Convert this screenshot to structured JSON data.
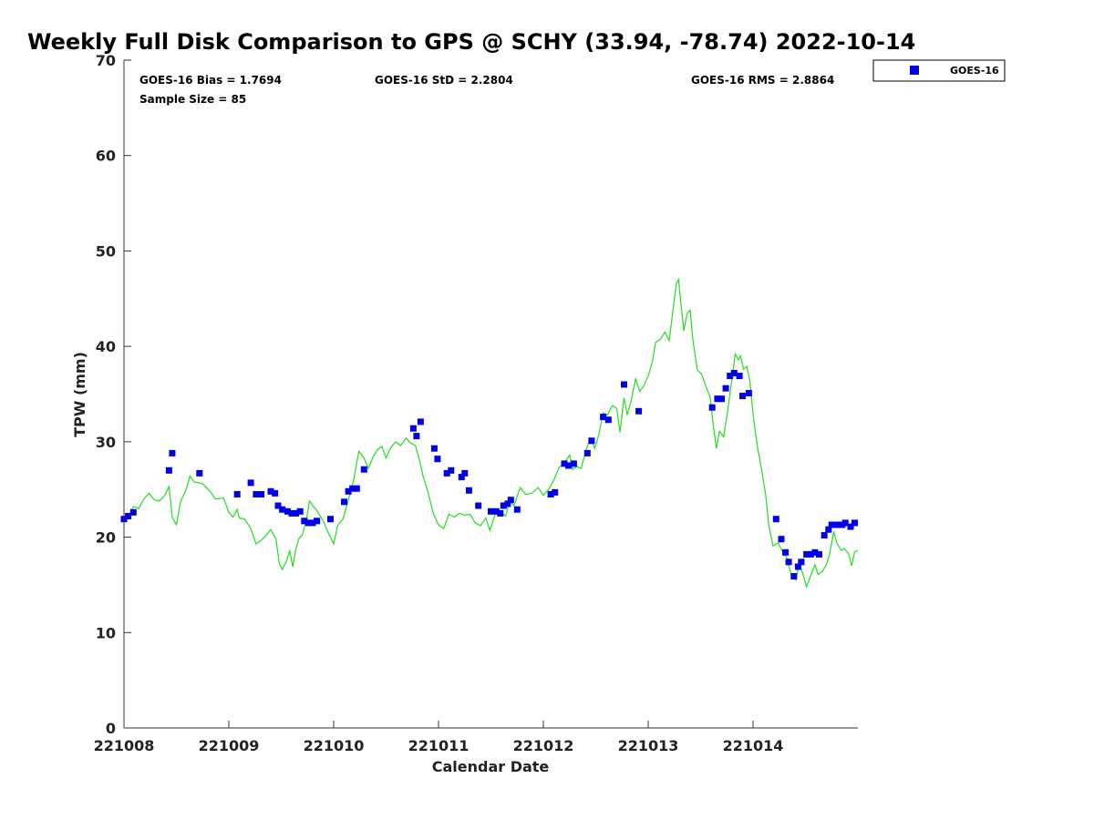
{
  "chart_data": {
    "type": "scatter",
    "title": "Weekly Full Disk Comparison to GPS @ SCHY (33.94, -78.74) 2022-10-14",
    "xlabel": "Calendar Date",
    "ylabel": "TPW (mm)",
    "xlim": [
      0,
      7
    ],
    "ylim": [
      0,
      70
    ],
    "yticks": [
      0,
      10,
      20,
      30,
      40,
      50,
      60,
      70
    ],
    "xticks": [
      {
        "x": 0,
        "label": "221008"
      },
      {
        "x": 1,
        "label": "221009"
      },
      {
        "x": 2,
        "label": "221010"
      },
      {
        "x": 3,
        "label": "221011"
      },
      {
        "x": 4,
        "label": "221012"
      },
      {
        "x": 5,
        "label": "221013"
      },
      {
        "x": 6,
        "label": "221014"
      }
    ],
    "grid": false,
    "legend_position": "top-right",
    "stats": {
      "bias": "GOES-16 Bias = 1.7694",
      "std": "GOES-16 StD = 2.2804",
      "rms": "GOES-16 RMS = 2.8864",
      "sample": "Sample Size = 85"
    },
    "series": [
      {
        "name": "GOES-16",
        "kind": "scatter",
        "color": "#0000ee",
        "points": [
          [
            0.0,
            21.9
          ],
          [
            0.04,
            22.2
          ],
          [
            0.09,
            22.6
          ],
          [
            0.43,
            27.0
          ],
          [
            0.46,
            28.8
          ],
          [
            0.72,
            26.7
          ],
          [
            1.08,
            24.5
          ],
          [
            1.21,
            25.7
          ],
          [
            1.26,
            24.5
          ],
          [
            1.31,
            24.5
          ],
          [
            1.4,
            24.8
          ],
          [
            1.44,
            24.6
          ],
          [
            1.47,
            23.3
          ],
          [
            1.51,
            22.9
          ],
          [
            1.56,
            22.7
          ],
          [
            1.6,
            22.5
          ],
          [
            1.64,
            22.5
          ],
          [
            1.68,
            22.7
          ],
          [
            1.72,
            21.7
          ],
          [
            1.76,
            21.5
          ],
          [
            1.8,
            21.5
          ],
          [
            1.84,
            21.7
          ],
          [
            1.97,
            21.9
          ],
          [
            2.1,
            23.7
          ],
          [
            2.14,
            24.8
          ],
          [
            2.18,
            25.1
          ],
          [
            2.22,
            25.1
          ],
          [
            2.29,
            27.1
          ],
          [
            2.76,
            31.4
          ],
          [
            2.79,
            30.6
          ],
          [
            2.83,
            32.1
          ],
          [
            2.96,
            29.3
          ],
          [
            2.99,
            28.2
          ],
          [
            3.08,
            26.7
          ],
          [
            3.12,
            27.0
          ],
          [
            3.22,
            26.3
          ],
          [
            3.25,
            26.7
          ],
          [
            3.29,
            24.9
          ],
          [
            3.38,
            23.3
          ],
          [
            3.5,
            22.7
          ],
          [
            3.55,
            22.7
          ],
          [
            3.59,
            22.5
          ],
          [
            3.62,
            23.3
          ],
          [
            3.66,
            23.5
          ],
          [
            3.69,
            23.9
          ],
          [
            3.75,
            22.9
          ],
          [
            4.07,
            24.5
          ],
          [
            4.11,
            24.7
          ],
          [
            4.2,
            27.7
          ],
          [
            4.24,
            27.5
          ],
          [
            4.29,
            27.7
          ],
          [
            4.42,
            28.8
          ],
          [
            4.46,
            30.1
          ],
          [
            4.57,
            32.6
          ],
          [
            4.62,
            32.3
          ],
          [
            4.77,
            36.0
          ],
          [
            4.91,
            33.2
          ],
          [
            5.61,
            33.6
          ],
          [
            5.66,
            34.5
          ],
          [
            5.7,
            34.5
          ],
          [
            5.74,
            35.6
          ],
          [
            5.78,
            36.9
          ],
          [
            5.82,
            37.2
          ],
          [
            5.87,
            36.9
          ],
          [
            5.9,
            34.8
          ],
          [
            5.96,
            35.1
          ],
          [
            6.22,
            21.9
          ],
          [
            6.27,
            19.8
          ],
          [
            6.31,
            18.4
          ],
          [
            6.34,
            17.4
          ],
          [
            6.39,
            15.9
          ],
          [
            6.43,
            16.9
          ],
          [
            6.46,
            17.4
          ],
          [
            6.51,
            18.2
          ],
          [
            6.55,
            18.2
          ],
          [
            6.59,
            18.4
          ],
          [
            6.63,
            18.2
          ],
          [
            6.68,
            20.2
          ],
          [
            6.72,
            20.8
          ],
          [
            6.75,
            21.3
          ],
          [
            6.81,
            21.3
          ],
          [
            6.85,
            21.3
          ],
          [
            6.88,
            21.5
          ],
          [
            6.93,
            21.1
          ],
          [
            6.97,
            21.5
          ]
        ]
      },
      {
        "kind": "line",
        "color": "#22dd22",
        "points": [
          [
            0.0,
            21.6
          ],
          [
            0.05,
            22.3
          ],
          [
            0.09,
            23.2
          ],
          [
            0.14,
            23.0
          ],
          [
            0.19,
            24.0
          ],
          [
            0.24,
            24.6
          ],
          [
            0.29,
            23.9
          ],
          [
            0.34,
            23.8
          ],
          [
            0.39,
            24.4
          ],
          [
            0.43,
            25.3
          ],
          [
            0.46,
            22.1
          ],
          [
            0.5,
            21.3
          ],
          [
            0.54,
            23.7
          ],
          [
            0.59,
            24.9
          ],
          [
            0.63,
            26.4
          ],
          [
            0.67,
            25.8
          ],
          [
            0.75,
            25.6
          ],
          [
            0.83,
            24.7
          ],
          [
            0.87,
            24.0
          ],
          [
            0.95,
            24.1
          ],
          [
            1.0,
            22.6
          ],
          [
            1.04,
            22.1
          ],
          [
            1.08,
            22.9
          ],
          [
            1.1,
            22.0
          ],
          [
            1.15,
            21.9
          ],
          [
            1.21,
            20.9
          ],
          [
            1.26,
            19.3
          ],
          [
            1.3,
            19.6
          ],
          [
            1.35,
            20.1
          ],
          [
            1.4,
            20.8
          ],
          [
            1.45,
            19.8
          ],
          [
            1.48,
            17.3
          ],
          [
            1.51,
            16.6
          ],
          [
            1.55,
            17.5
          ],
          [
            1.58,
            18.6
          ],
          [
            1.61,
            16.9
          ],
          [
            1.64,
            18.8
          ],
          [
            1.67,
            19.9
          ],
          [
            1.7,
            20.2
          ],
          [
            1.74,
            21.8
          ],
          [
            1.77,
            23.8
          ],
          [
            1.8,
            23.3
          ],
          [
            1.84,
            22.8
          ],
          [
            1.9,
            21.7
          ],
          [
            1.95,
            20.4
          ],
          [
            2.0,
            19.3
          ],
          [
            2.04,
            21.3
          ],
          [
            2.09,
            21.9
          ],
          [
            2.14,
            23.9
          ],
          [
            2.19,
            26.0
          ],
          [
            2.24,
            29.0
          ],
          [
            2.29,
            28.3
          ],
          [
            2.33,
            27.2
          ],
          [
            2.38,
            28.5
          ],
          [
            2.42,
            29.2
          ],
          [
            2.46,
            29.5
          ],
          [
            2.5,
            28.3
          ],
          [
            2.54,
            29.3
          ],
          [
            2.59,
            30.0
          ],
          [
            2.64,
            29.6
          ],
          [
            2.69,
            30.4
          ],
          [
            2.73,
            29.9
          ],
          [
            2.78,
            29.6
          ],
          [
            2.82,
            28.0
          ],
          [
            2.85,
            26.5
          ],
          [
            2.9,
            24.7
          ],
          [
            2.95,
            22.5
          ],
          [
            3.0,
            21.3
          ],
          [
            3.05,
            20.9
          ],
          [
            3.1,
            22.4
          ],
          [
            3.15,
            22.1
          ],
          [
            3.2,
            22.5
          ],
          [
            3.25,
            22.3
          ],
          [
            3.3,
            22.4
          ],
          [
            3.35,
            21.5
          ],
          [
            3.4,
            21.2
          ],
          [
            3.45,
            22.0
          ],
          [
            3.49,
            20.7
          ],
          [
            3.54,
            22.4
          ],
          [
            3.59,
            22.7
          ],
          [
            3.64,
            22.2
          ],
          [
            3.68,
            23.9
          ],
          [
            3.72,
            23.3
          ],
          [
            3.78,
            25.2
          ],
          [
            3.83,
            24.5
          ],
          [
            3.89,
            24.6
          ],
          [
            3.95,
            25.2
          ],
          [
            4.0,
            24.4
          ],
          [
            4.05,
            25.0
          ],
          [
            4.1,
            26.0
          ],
          [
            4.15,
            27.3
          ],
          [
            4.2,
            27.8
          ],
          [
            4.25,
            28.6
          ],
          [
            4.28,
            27.1
          ],
          [
            4.32,
            27.4
          ],
          [
            4.36,
            27.2
          ],
          [
            4.41,
            29.2
          ],
          [
            4.45,
            30.4
          ],
          [
            4.49,
            29.3
          ],
          [
            4.53,
            30.8
          ],
          [
            4.57,
            33.0
          ],
          [
            4.61,
            32.8
          ],
          [
            4.66,
            33.8
          ],
          [
            4.7,
            33.5
          ],
          [
            4.73,
            31.0
          ],
          [
            4.77,
            34.6
          ],
          [
            4.8,
            32.8
          ],
          [
            4.84,
            34.4
          ],
          [
            4.88,
            36.6
          ],
          [
            4.92,
            35.3
          ],
          [
            4.96,
            35.9
          ],
          [
            5.0,
            36.9
          ],
          [
            5.04,
            38.4
          ],
          [
            5.07,
            40.4
          ],
          [
            5.12,
            40.8
          ],
          [
            5.16,
            41.5
          ],
          [
            5.2,
            40.6
          ],
          [
            5.24,
            44.1
          ],
          [
            5.27,
            46.6
          ],
          [
            5.29,
            47.0
          ],
          [
            5.31,
            44.8
          ],
          [
            5.34,
            41.6
          ],
          [
            5.37,
            43.4
          ],
          [
            5.4,
            43.8
          ],
          [
            5.43,
            40.4
          ],
          [
            5.47,
            37.5
          ],
          [
            5.51,
            37.1
          ],
          [
            5.55,
            35.8
          ],
          [
            5.59,
            34.7
          ],
          [
            5.62,
            31.8
          ],
          [
            5.65,
            29.3
          ],
          [
            5.68,
            31.1
          ],
          [
            5.72,
            30.5
          ],
          [
            5.76,
            33.4
          ],
          [
            5.79,
            35.9
          ],
          [
            5.83,
            39.2
          ],
          [
            5.86,
            38.6
          ],
          [
            5.88,
            39.0
          ],
          [
            5.91,
            37.6
          ],
          [
            5.94,
            37.9
          ],
          [
            5.97,
            36.4
          ],
          [
            6.0,
            32.9
          ],
          [
            6.04,
            29.6
          ],
          [
            6.08,
            27.2
          ],
          [
            6.12,
            24.5
          ],
          [
            6.15,
            21.2
          ],
          [
            6.19,
            19.1
          ],
          [
            6.24,
            19.4
          ],
          [
            6.28,
            18.5
          ],
          [
            6.32,
            17.9
          ],
          [
            6.36,
            16.2
          ],
          [
            6.41,
            15.5
          ],
          [
            6.44,
            17.3
          ],
          [
            6.48,
            16.0
          ],
          [
            6.51,
            14.8
          ],
          [
            6.55,
            16.0
          ],
          [
            6.59,
            17.1
          ],
          [
            6.62,
            16.1
          ],
          [
            6.66,
            16.4
          ],
          [
            6.7,
            17.1
          ],
          [
            6.73,
            18.2
          ],
          [
            6.77,
            20.6
          ],
          [
            6.8,
            19.4
          ],
          [
            6.84,
            18.6
          ],
          [
            6.87,
            18.8
          ],
          [
            6.91,
            18.3
          ],
          [
            6.94,
            17.0
          ],
          [
            6.97,
            18.5
          ],
          [
            7.0,
            18.6
          ]
        ]
      }
    ]
  }
}
